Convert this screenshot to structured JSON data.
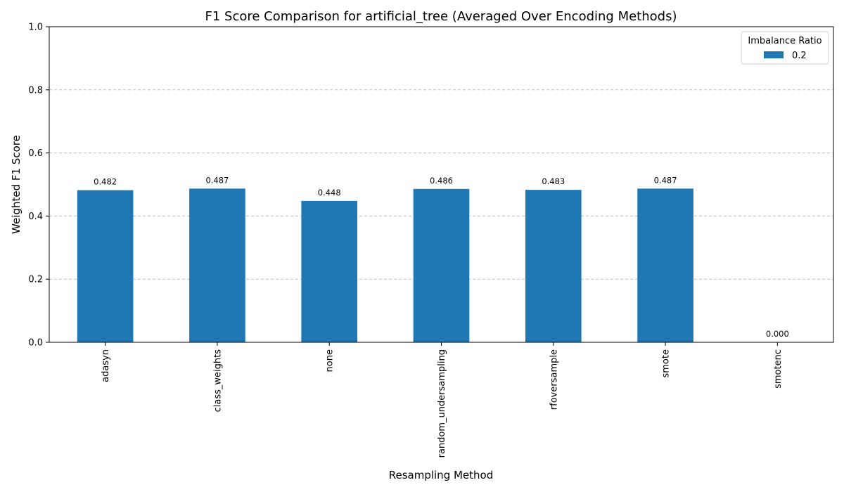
{
  "chart_data": {
    "type": "bar",
    "title": "F1 Score Comparison for artificial_tree (Averaged Over Encoding Methods)",
    "xlabel": "Resampling Method",
    "ylabel": "Weighted F1 Score",
    "ylim": [
      0,
      1.0
    ],
    "yticks": [
      0.0,
      0.2,
      0.4,
      0.6,
      0.8,
      1.0
    ],
    "ytick_labels": [
      "0.0",
      "0.2",
      "0.4",
      "0.6",
      "0.8",
      "1.0"
    ],
    "grid": true,
    "categories": [
      "adasyn",
      "class_weights",
      "none",
      "random_undersampling",
      "rfoversample",
      "smote",
      "smotenc"
    ],
    "series": [
      {
        "name": "0.2",
        "values": [
          0.482,
          0.487,
          0.448,
          0.486,
          0.483,
          0.487,
          0.0
        ],
        "labels": [
          "0.482",
          "0.487",
          "0.448",
          "0.486",
          "0.483",
          "0.487",
          "0.000"
        ],
        "color": "#1f77b4"
      }
    ],
    "legend": {
      "title": "Imbalance Ratio",
      "placement": "top-right"
    }
  }
}
